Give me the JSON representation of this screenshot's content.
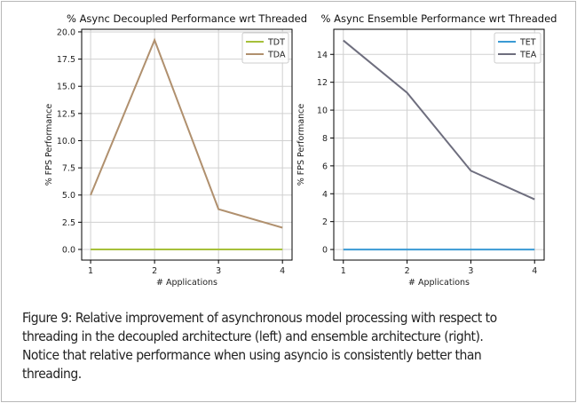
{
  "chart_data": [
    {
      "type": "line",
      "title": "% Async Decoupled Performance wrt Threaded",
      "xlabel": "# Applications",
      "ylabel": "% FPS Performance",
      "x": [
        1,
        2,
        3,
        4
      ],
      "xlim": [
        0.86,
        4.15
      ],
      "ylim": [
        -0.98,
        20.24
      ],
      "xticks": [
        "1",
        "2",
        "3",
        "4"
      ],
      "yticks": [
        "0.0",
        "2.5",
        "5.0",
        "7.5",
        "10.0",
        "12.5",
        "15.0",
        "17.5",
        "20.0"
      ],
      "ytick_values": [
        0,
        2.5,
        5,
        7.5,
        10,
        12.5,
        15,
        17.5,
        20
      ],
      "grid": true,
      "legend": "top-right",
      "series": [
        {
          "name": "TDT",
          "values": [
            0,
            0,
            0,
            0
          ],
          "color": "#a6c03a"
        },
        {
          "name": "TDA",
          "values": [
            5.0,
            19.25,
            3.7,
            2.0
          ],
          "color": "#b0906e"
        }
      ]
    },
    {
      "type": "line",
      "title": "% Async Ensemble Performance wrt Threaded",
      "xlabel": "# Applications",
      "ylabel": "% FPS Performance",
      "x": [
        1,
        2,
        3,
        4
      ],
      "xlim": [
        0.85,
        4.15
      ],
      "ylim": [
        -0.76,
        15.8
      ],
      "xticks": [
        "1",
        "2",
        "3",
        "4"
      ],
      "yticks": [
        "0",
        "2",
        "4",
        "6",
        "8",
        "10",
        "12",
        "14"
      ],
      "ytick_values": [
        0,
        2,
        4,
        6,
        8,
        10,
        12,
        14
      ],
      "grid": true,
      "legend": "top-right",
      "series": [
        {
          "name": "TET",
          "values": [
            0,
            0,
            0,
            0
          ],
          "color": "#3a9ad4"
        },
        {
          "name": "TEA",
          "values": [
            15.0,
            11.25,
            5.65,
            3.6
          ],
          "color": "#6e6e7e"
        }
      ]
    }
  ],
  "caption": {
    "lines": [
      "Figure 9: Relative improvement of asynchronous model processing with respect to",
      "threading in the decoupled architecture (left) and ensemble architecture (right).",
      "Notice that relative performance when using asyncio is consistently better than",
      "threading."
    ]
  }
}
